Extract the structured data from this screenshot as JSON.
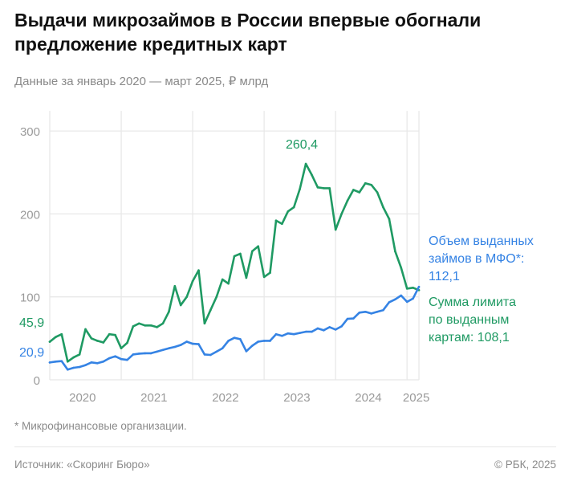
{
  "header": {
    "title": "Выдачи микрозаймов в России впервые обогнали предложение кредитных карт",
    "subtitle": "Данные за январь 2020 — март 2025, ₽ млрд"
  },
  "footer": {
    "note": "* Микрофинансовые организации.",
    "source": "Источник: «Скоринг Бюро»",
    "copyright": "© РБК, 2025"
  },
  "colors": {
    "green": "#1f9a63",
    "blue": "#3583e4",
    "grid": "#e8e8e8",
    "axis_text": "#9a9a9a"
  },
  "chart_data": {
    "type": "line",
    "title": "Выдачи микрозаймов в России впервые обогнали предложение кредитных карт",
    "subtitle": "Данные за январь 2020 — март 2025, ₽ млрд",
    "ylim": [
      0,
      300
    ],
    "yticks": [
      "0",
      "100",
      "200",
      "300"
    ],
    "xticks": [
      "2020",
      "2021",
      "2022",
      "2023",
      "2024",
      "2025"
    ],
    "grid": true,
    "x": [
      "2020-01",
      "2020-02",
      "2020-03",
      "2020-04",
      "2020-05",
      "2020-06",
      "2020-07",
      "2020-08",
      "2020-09",
      "2020-10",
      "2020-11",
      "2020-12",
      "2021-01",
      "2021-02",
      "2021-03",
      "2021-04",
      "2021-05",
      "2021-06",
      "2021-07",
      "2021-08",
      "2021-09",
      "2021-10",
      "2021-11",
      "2021-12",
      "2022-01",
      "2022-02",
      "2022-03",
      "2022-04",
      "2022-05",
      "2022-06",
      "2022-07",
      "2022-08",
      "2022-09",
      "2022-10",
      "2022-11",
      "2022-12",
      "2023-01",
      "2023-02",
      "2023-03",
      "2023-04",
      "2023-05",
      "2023-06",
      "2023-07",
      "2023-08",
      "2023-09",
      "2023-10",
      "2023-11",
      "2023-12",
      "2024-01",
      "2024-02",
      "2024-03",
      "2024-04",
      "2024-05",
      "2024-06",
      "2024-07",
      "2024-08",
      "2024-09",
      "2024-10",
      "2024-11",
      "2024-12",
      "2025-01",
      "2025-02",
      "2025-03"
    ],
    "series": [
      {
        "name": "Сумма лимита по выданным картам",
        "color": "#1f9a63",
        "values": [
          45.9,
          51.6,
          55,
          22,
          27,
          30.6,
          61,
          50,
          47,
          45,
          55,
          54,
          38,
          44.5,
          64.5,
          68,
          65.5,
          65.5,
          63.5,
          68,
          82,
          113,
          90,
          100,
          119,
          132,
          68,
          84,
          100,
          121,
          116,
          149,
          152,
          123,
          155,
          161,
          124,
          129,
          192,
          188,
          203,
          208,
          230,
          260.4,
          247,
          232,
          231,
          231,
          181,
          200,
          216,
          229,
          226,
          237,
          235,
          226,
          208,
          194,
          155,
          135,
          110,
          111,
          108.1
        ]
      },
      {
        "name": "Объем выданных займов в МФО*",
        "color": "#3583e4",
        "values": [
          20.9,
          22,
          22.6,
          12.3,
          14.5,
          15.5,
          17.7,
          21,
          20,
          22,
          26,
          28.4,
          25,
          24,
          30.6,
          31.6,
          32,
          32,
          34,
          36,
          38,
          39.7,
          42,
          46,
          43.5,
          43,
          30.6,
          30,
          34,
          38,
          47,
          50.6,
          49,
          34.5,
          41,
          46,
          47,
          47,
          55,
          53,
          56,
          55,
          56.5,
          58,
          58,
          62,
          59.7,
          63.5,
          60.6,
          64.5,
          73.5,
          74,
          81,
          82,
          80,
          82,
          84,
          93.5,
          97,
          101.6,
          94,
          98,
          112.1
        ]
      }
    ],
    "annotations": {
      "green_start": "45,9",
      "blue_start": "20,9",
      "green_peak": "260,4",
      "blue_end": [
        "Объем выданных",
        "займов в МФО*:",
        "112,1"
      ],
      "green_end": [
        "Сумма лимита",
        "по выданным",
        "картам: 108,1"
      ]
    }
  }
}
